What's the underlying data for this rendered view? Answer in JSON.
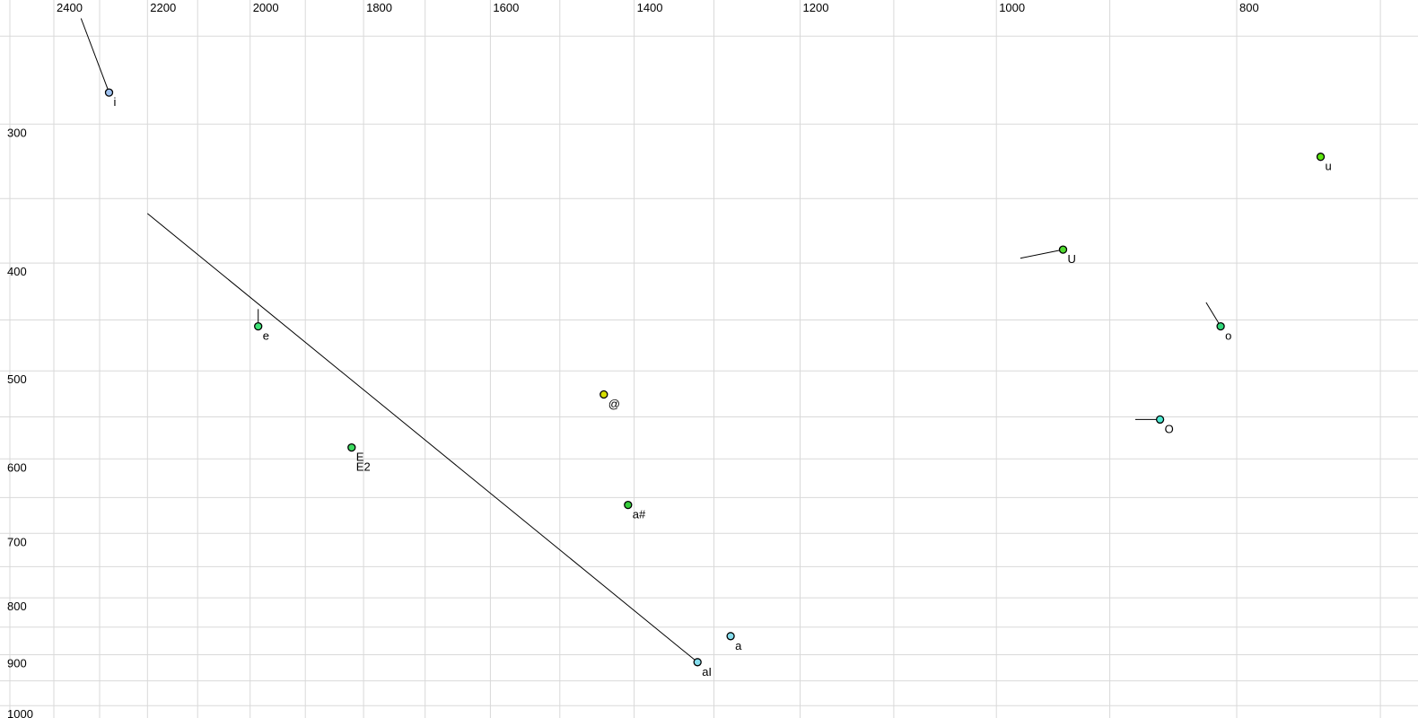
{
  "chart_data": {
    "type": "scatter",
    "title": "",
    "xlabel": "",
    "ylabel": "",
    "legend": "none",
    "grid": "on",
    "x_axis": {
      "scale": "log",
      "reversed": true,
      "range": [
        2523,
        676
      ],
      "gridlines": [
        2500,
        2400,
        2300,
        2200,
        2100,
        2000,
        1900,
        1800,
        1700,
        1600,
        1500,
        1400,
        1300,
        1200,
        1100,
        1000,
        900,
        800,
        700
      ],
      "ticks": [
        {
          "value": 2400,
          "label": "2400"
        },
        {
          "value": 2200,
          "label": "2200"
        },
        {
          "value": 2000,
          "label": "2000"
        },
        {
          "value": 1800,
          "label": "1800"
        },
        {
          "value": 1600,
          "label": "1600"
        },
        {
          "value": 1400,
          "label": "1400"
        },
        {
          "value": 1200,
          "label": "1200"
        },
        {
          "value": 1000,
          "label": "1000"
        },
        {
          "value": 800,
          "label": "800"
        }
      ]
    },
    "y_axis": {
      "scale": "log",
      "inverted": true,
      "range": [
        232,
        1026
      ],
      "gridlines": [
        250,
        300,
        350,
        400,
        450,
        500,
        550,
        600,
        650,
        700,
        750,
        800,
        850,
        900,
        950,
        1000
      ],
      "ticks": [
        {
          "value": 300,
          "label": "300"
        },
        {
          "value": 400,
          "label": "400"
        },
        {
          "value": 500,
          "label": "500"
        },
        {
          "value": 600,
          "label": "600"
        },
        {
          "value": 700,
          "label": "700"
        },
        {
          "value": 800,
          "label": "800"
        },
        {
          "value": 900,
          "label": "900"
        },
        {
          "value": 1000,
          "label": "1000"
        }
      ]
    },
    "points": [
      {
        "label": "i",
        "f2": 2280,
        "f1": 281,
        "color": "#9ec1ef",
        "glide": {
          "f2": 2340,
          "f1": 241
        }
      },
      {
        "label": "e",
        "f2": 1985,
        "f1": 456,
        "color": "#3ee376",
        "glide": {
          "f2": 1985,
          "f1": 440
        }
      },
      {
        "label": "E",
        "label2": "E2",
        "f2": 1820,
        "f1": 586,
        "color": "#3cdb60",
        "glide": null
      },
      {
        "label": "@",
        "f2": 1440,
        "f1": 525,
        "color": "#d6de00",
        "glide": null
      },
      {
        "label": "a#",
        "f2": 1408,
        "f1": 660,
        "color": "#36cd3b",
        "glide": null
      },
      {
        "label": "a",
        "f2": 1280,
        "f1": 866,
        "color": "#85dded",
        "glide": null
      },
      {
        "label": "aI",
        "f2": 1320,
        "f1": 914,
        "color": "#85dded",
        "glide": {
          "f2": 2200,
          "f1": 361
        }
      },
      {
        "label": "O",
        "f2": 859,
        "f1": 553,
        "color": "#4fe9d2",
        "glide": {
          "f2": 879,
          "f1": 553
        }
      },
      {
        "label": "o",
        "f2": 812,
        "f1": 456,
        "color": "#30d678",
        "glide": {
          "f2": 823,
          "f1": 434
        }
      },
      {
        "label": "U",
        "f2": 940,
        "f1": 389,
        "color": "#50da30",
        "glide": {
          "f2": 978,
          "f1": 396
        }
      },
      {
        "label": "u",
        "f2": 740,
        "f1": 321,
        "color": "#5ce60e",
        "glide": null
      }
    ],
    "colors": {
      "background": "#ffffff",
      "gridline": "#d9d9d9",
      "glide_line": "#000000",
      "point_outline": "#000000",
      "tick_text": "#000000"
    },
    "point_radius_px": 4
  }
}
